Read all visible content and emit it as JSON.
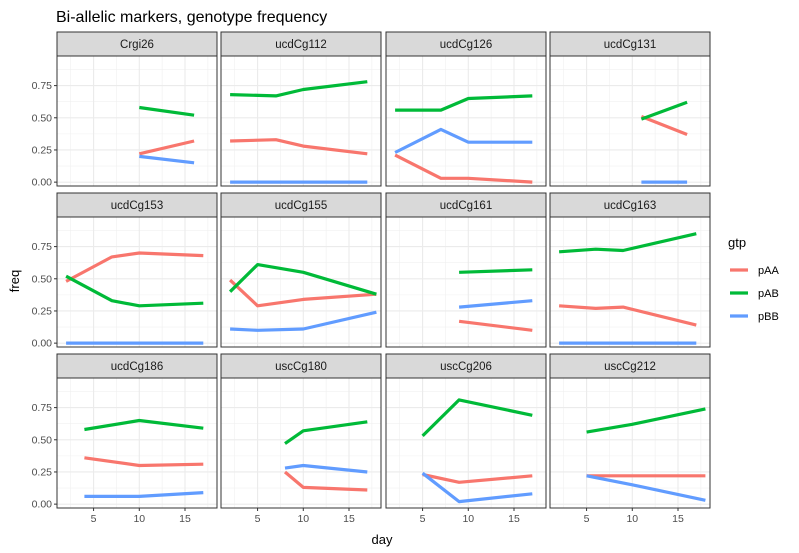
{
  "chart_data": {
    "type": "line",
    "title": "Bi-allelic markers, genotype frequency",
    "xlabel": "day",
    "ylabel": "freq",
    "xlim": [
      1,
      18.5
    ],
    "ylim": [
      -0.03,
      0.98
    ],
    "x_ticks": [
      5,
      10,
      15
    ],
    "y_ticks": [
      0.0,
      0.25,
      0.5,
      0.75
    ],
    "y_tick_labels": [
      "0.00",
      "0.25",
      "0.50",
      "0.75"
    ],
    "grid": true,
    "legend": {
      "title": "gtp",
      "position": "right",
      "entries": [
        {
          "name": "pAA",
          "color": "#F8766D"
        },
        {
          "name": "pAB",
          "color": "#00BA38"
        },
        {
          "name": "pBB",
          "color": "#619CFF"
        }
      ]
    },
    "facets": [
      {
        "label": "Crgi26",
        "series": [
          {
            "name": "pAA",
            "points": [
              [
                10,
                0.22
              ],
              [
                16,
                0.32
              ]
            ]
          },
          {
            "name": "pAB",
            "points": [
              [
                10,
                0.58
              ],
              [
                16,
                0.52
              ]
            ]
          },
          {
            "name": "pBB",
            "points": [
              [
                10,
                0.2
              ],
              [
                16,
                0.15
              ]
            ]
          }
        ]
      },
      {
        "label": "ucdCg112",
        "series": [
          {
            "name": "pAA",
            "points": [
              [
                2,
                0.32
              ],
              [
                7,
                0.33
              ],
              [
                10,
                0.28
              ],
              [
                17,
                0.22
              ]
            ]
          },
          {
            "name": "pAB",
            "points": [
              [
                2,
                0.68
              ],
              [
                7,
                0.67
              ],
              [
                10,
                0.72
              ],
              [
                17,
                0.78
              ]
            ]
          },
          {
            "name": "pBB",
            "points": [
              [
                2,
                0.0
              ],
              [
                7,
                0.0
              ],
              [
                10,
                0.0
              ],
              [
                17,
                0.0
              ]
            ]
          }
        ]
      },
      {
        "label": "ucdCg126",
        "series": [
          {
            "name": "pAA",
            "points": [
              [
                2,
                0.21
              ],
              [
                7,
                0.03
              ],
              [
                10,
                0.03
              ],
              [
                17,
                0.0
              ]
            ]
          },
          {
            "name": "pAB",
            "points": [
              [
                2,
                0.56
              ],
              [
                7,
                0.56
              ],
              [
                10,
                0.65
              ],
              [
                17,
                0.67
              ]
            ]
          },
          {
            "name": "pBB",
            "points": [
              [
                2,
                0.23
              ],
              [
                7,
                0.41
              ],
              [
                10,
                0.31
              ],
              [
                17,
                0.31
              ]
            ]
          }
        ]
      },
      {
        "label": "ucdCg131",
        "series": [
          {
            "name": "pAA",
            "points": [
              [
                11,
                0.51
              ],
              [
                16,
                0.37
              ]
            ]
          },
          {
            "name": "pAB",
            "points": [
              [
                11,
                0.49
              ],
              [
                16,
                0.62
              ]
            ]
          },
          {
            "name": "pBB",
            "points": [
              [
                11,
                0.0
              ],
              [
                16,
                0.0
              ]
            ]
          }
        ]
      },
      {
        "label": "ucdCg153",
        "series": [
          {
            "name": "pAA",
            "points": [
              [
                2,
                0.48
              ],
              [
                7,
                0.67
              ],
              [
                10,
                0.7
              ],
              [
                17,
                0.68
              ]
            ]
          },
          {
            "name": "pAB",
            "points": [
              [
                2,
                0.52
              ],
              [
                7,
                0.33
              ],
              [
                10,
                0.29
              ],
              [
                17,
                0.31
              ]
            ]
          },
          {
            "name": "pBB",
            "points": [
              [
                2,
                0.0
              ],
              [
                7,
                0.0
              ],
              [
                10,
                0.0
              ],
              [
                17,
                0.0
              ]
            ]
          }
        ]
      },
      {
        "label": "ucdCg155",
        "series": [
          {
            "name": "pAA",
            "points": [
              [
                2,
                0.49
              ],
              [
                5,
                0.29
              ],
              [
                10,
                0.34
              ],
              [
                18,
                0.38
              ]
            ]
          },
          {
            "name": "pAB",
            "points": [
              [
                2,
                0.4
              ],
              [
                5,
                0.61
              ],
              [
                10,
                0.55
              ],
              [
                18,
                0.38
              ]
            ]
          },
          {
            "name": "pBB",
            "points": [
              [
                2,
                0.11
              ],
              [
                5,
                0.1
              ],
              [
                10,
                0.11
              ],
              [
                18,
                0.24
              ]
            ]
          }
        ]
      },
      {
        "label": "ucdCg161",
        "series": [
          {
            "name": "pAA",
            "points": [
              [
                9,
                0.17
              ],
              [
                17,
                0.1
              ]
            ]
          },
          {
            "name": "pAB",
            "points": [
              [
                9,
                0.55
              ],
              [
                17,
                0.57
              ]
            ]
          },
          {
            "name": "pBB",
            "points": [
              [
                9,
                0.28
              ],
              [
                17,
                0.33
              ]
            ]
          }
        ]
      },
      {
        "label": "ucdCg163",
        "series": [
          {
            "name": "pAA",
            "points": [
              [
                2,
                0.29
              ],
              [
                6,
                0.27
              ],
              [
                9,
                0.28
              ],
              [
                17,
                0.14
              ]
            ]
          },
          {
            "name": "pAB",
            "points": [
              [
                2,
                0.71
              ],
              [
                6,
                0.73
              ],
              [
                9,
                0.72
              ],
              [
                17,
                0.85
              ]
            ]
          },
          {
            "name": "pBB",
            "points": [
              [
                2,
                0.0
              ],
              [
                6,
                0.0
              ],
              [
                9,
                0.0
              ],
              [
                17,
                0.0
              ]
            ]
          }
        ]
      },
      {
        "label": "ucdCg186",
        "series": [
          {
            "name": "pAA",
            "points": [
              [
                4,
                0.36
              ],
              [
                10,
                0.3
              ],
              [
                17,
                0.31
              ]
            ]
          },
          {
            "name": "pAB",
            "points": [
              [
                4,
                0.58
              ],
              [
                10,
                0.65
              ],
              [
                17,
                0.59
              ]
            ]
          },
          {
            "name": "pBB",
            "points": [
              [
                4,
                0.06
              ],
              [
                10,
                0.06
              ],
              [
                17,
                0.09
              ]
            ]
          }
        ]
      },
      {
        "label": "uscCg180",
        "series": [
          {
            "name": "pAA",
            "points": [
              [
                8,
                0.25
              ],
              [
                10,
                0.13
              ],
              [
                17,
                0.11
              ]
            ]
          },
          {
            "name": "pAB",
            "points": [
              [
                8,
                0.47
              ],
              [
                10,
                0.57
              ],
              [
                17,
                0.64
              ]
            ]
          },
          {
            "name": "pBB",
            "points": [
              [
                8,
                0.28
              ],
              [
                10,
                0.3
              ],
              [
                17,
                0.25
              ]
            ]
          }
        ]
      },
      {
        "label": "uscCg206",
        "series": [
          {
            "name": "pAA",
            "points": [
              [
                5,
                0.23
              ],
              [
                9,
                0.17
              ],
              [
                17,
                0.22
              ]
            ]
          },
          {
            "name": "pAB",
            "points": [
              [
                5,
                0.53
              ],
              [
                9,
                0.81
              ],
              [
                17,
                0.69
              ]
            ]
          },
          {
            "name": "pBB",
            "points": [
              [
                5,
                0.24
              ],
              [
                9,
                0.02
              ],
              [
                17,
                0.08
              ]
            ]
          }
        ]
      },
      {
        "label": "uscCg212",
        "series": [
          {
            "name": "pAA",
            "points": [
              [
                5,
                0.22
              ],
              [
                10,
                0.22
              ],
              [
                18,
                0.22
              ]
            ]
          },
          {
            "name": "pAB",
            "points": [
              [
                5,
                0.56
              ],
              [
                10,
                0.62
              ],
              [
                18,
                0.74
              ]
            ]
          },
          {
            "name": "pBB",
            "points": [
              [
                5,
                0.22
              ],
              [
                10,
                0.15
              ],
              [
                18,
                0.03
              ]
            ]
          }
        ]
      }
    ]
  }
}
